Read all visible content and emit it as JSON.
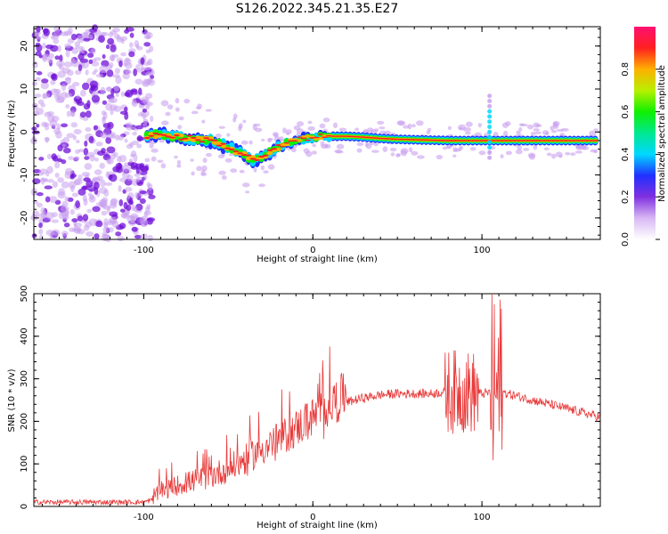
{
  "title": "S126.2022.345.21.35.E27",
  "colors": {
    "snr_line": "#e83a3a",
    "spectrum_low": "#c9a0ee",
    "spectrum_mid": "#7010d8"
  },
  "chart_data": [
    {
      "type": "heatmap",
      "xlabel": "Height of straight line (km)",
      "ylabel": "Frequency (Hz)",
      "xlim": [
        -165,
        170
      ],
      "ylim": [
        -25,
        24.5
      ],
      "xticks": [
        -100,
        0,
        100
      ],
      "yticks": [
        -20,
        -10,
        0,
        10,
        20
      ],
      "colorbar": {
        "label": "Normalized spectral amplitude",
        "range": [
          0,
          1
        ],
        "ticks": [
          "0.0",
          "0.2",
          "0.4",
          "0.6",
          "0.8"
        ],
        "colormap": [
          "#ffffff",
          "#d8b8f4",
          "#8030e0",
          "#2030ff",
          "#00d8ff",
          "#00e890",
          "#10f000",
          "#b8f000",
          "#ffb000",
          "#ff2020",
          "#ff1070"
        ]
      },
      "ridge": {
        "x": [
          -100,
          -90,
          -80,
          -70,
          -60,
          -50,
          -40,
          -35,
          -30,
          -25,
          -20,
          -15,
          -10,
          -5,
          0,
          5,
          10,
          20,
          30,
          40,
          50,
          60,
          70,
          80,
          90,
          100,
          110,
          120,
          130,
          140,
          150,
          160,
          168
        ],
        "y": [
          -1.0,
          -0.5,
          -1.2,
          -1.5,
          -2.0,
          -3.5,
          -5.5,
          -6.5,
          -6.0,
          -4.5,
          -3.5,
          -2.5,
          -2.0,
          -1.5,
          -1.2,
          -1.0,
          -1.0,
          -1.0,
          -1.2,
          -1.5,
          -1.7,
          -1.8,
          -1.9,
          -2.0,
          -2.0,
          -2.0,
          -2.0,
          -2.0,
          -2.0,
          -2.0,
          -2.0,
          -2.0,
          -2.0
        ]
      }
    },
    {
      "type": "line",
      "xlabel": "Height of straight line (km)",
      "ylabel": "SNR (10 * v/v)",
      "xlim": [
        -165,
        170
      ],
      "ylim": [
        0,
        500
      ],
      "xticks": [
        -100,
        0,
        100
      ],
      "yticks": [
        0,
        100,
        200,
        300,
        400,
        500
      ],
      "envelope": {
        "x": [
          -165,
          -140,
          -120,
          -100,
          -95,
          -90,
          -80,
          -70,
          -60,
          -50,
          -40,
          -30,
          -20,
          -10,
          0,
          10,
          20,
          30,
          40,
          50,
          60,
          70,
          80,
          90,
          100,
          110,
          120,
          130,
          140,
          150,
          160,
          170
        ],
        "y": [
          10,
          10,
          10,
          10,
          15,
          25,
          40,
          50,
          60,
          75,
          95,
          120,
          140,
          165,
          190,
          220,
          245,
          255,
          262,
          265,
          265,
          265,
          270,
          270,
          265,
          270,
          260,
          250,
          240,
          230,
          220,
          210
        ]
      }
    }
  ]
}
